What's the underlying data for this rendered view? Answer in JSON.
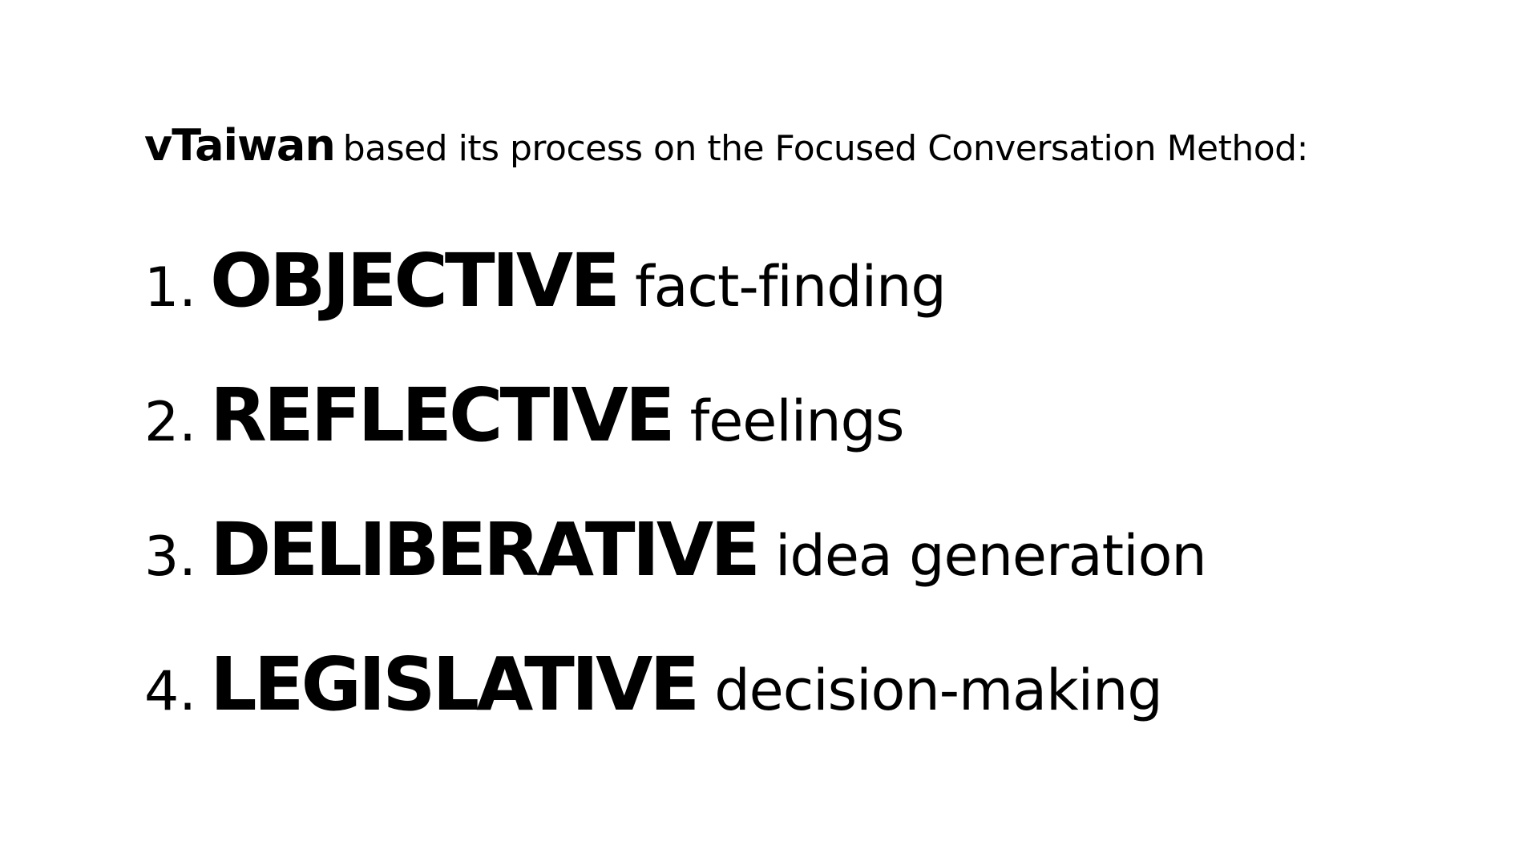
{
  "intro": {
    "brand": "vTaiwan",
    "text": "based its process on the Focused Conversation Method:"
  },
  "steps": [
    {
      "number": "1.",
      "term": "OBJECTIVE",
      "description": "fact-finding"
    },
    {
      "number": "2.",
      "term": "REFLECTIVE",
      "description": "feelings"
    },
    {
      "number": "3.",
      "term": "DELIBERATIVE",
      "description": "idea generation"
    },
    {
      "number": "4.",
      "term": "LEGISLATIVE",
      "description": "decision-making"
    }
  ]
}
